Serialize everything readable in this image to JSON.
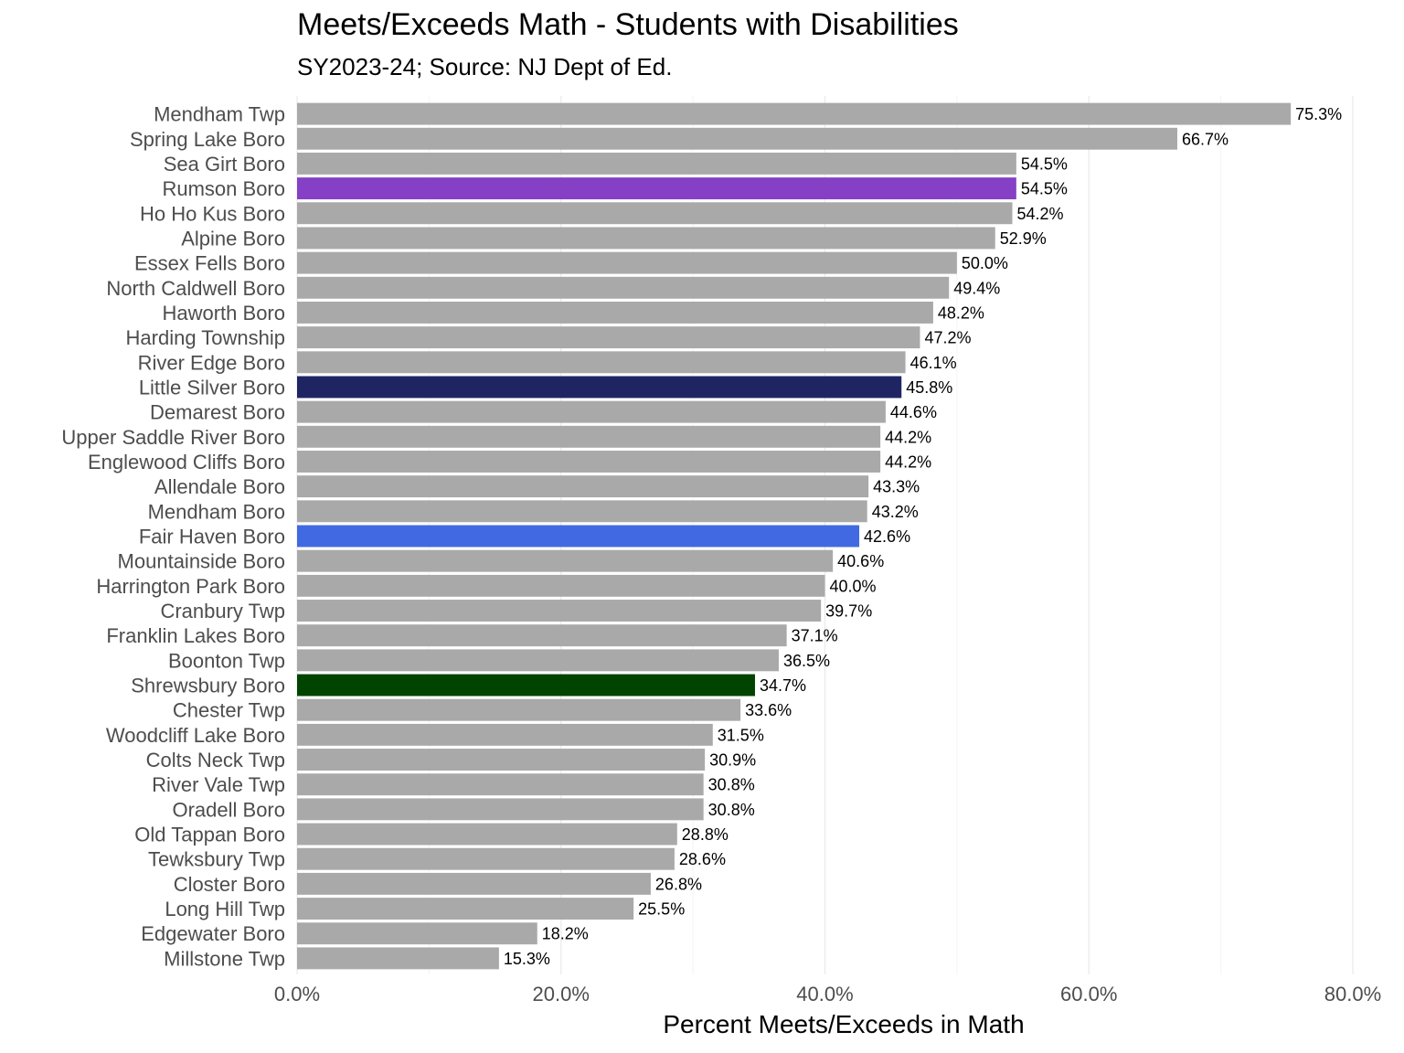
{
  "chart_data": {
    "type": "bar",
    "orientation": "horizontal",
    "title": "Meets/Exceeds Math - Students with Disabilities",
    "subtitle": "SY2023-24; Source: NJ Dept of Ed.",
    "xlabel": "Percent Meets/Exceeds in Math",
    "ylabel": "",
    "xlim": [
      0,
      80
    ],
    "x_ticks": [
      0,
      20,
      40,
      60,
      80
    ],
    "x_tick_labels": [
      "0.0%",
      "20.0%",
      "40.0%",
      "60.0%",
      "80.0%"
    ],
    "grid": true,
    "default_color": "#a9a9a9",
    "categories": [
      "Mendham Twp",
      "Spring Lake Boro",
      "Sea Girt Boro",
      "Rumson Boro",
      "Ho Ho Kus Boro",
      "Alpine Boro",
      "Essex Fells Boro",
      "North Caldwell Boro",
      "Haworth Boro",
      "Harding Township",
      "River Edge Boro",
      "Little Silver Boro",
      "Demarest Boro",
      "Upper Saddle River Boro",
      "Englewood Cliffs Boro",
      "Allendale Boro",
      "Mendham Boro",
      "Fair Haven Boro",
      "Mountainside Boro",
      "Harrington Park Boro",
      "Cranbury Twp",
      "Franklin Lakes Boro",
      "Boonton Twp",
      "Shrewsbury Boro",
      "Chester Twp",
      "Woodcliff Lake Boro",
      "Colts Neck Twp",
      "River Vale Twp",
      "Oradell Boro",
      "Old Tappan Boro",
      "Tewksbury Twp",
      "Closter Boro",
      "Long Hill Twp",
      "Edgewater Boro",
      "Millstone Twp"
    ],
    "values": [
      75.3,
      66.7,
      54.5,
      54.5,
      54.2,
      52.9,
      50.0,
      49.4,
      48.2,
      47.2,
      46.1,
      45.8,
      44.6,
      44.2,
      44.2,
      43.3,
      43.2,
      42.6,
      40.6,
      40.0,
      39.7,
      37.1,
      36.5,
      34.7,
      33.6,
      31.5,
      30.9,
      30.8,
      30.8,
      28.8,
      28.6,
      26.8,
      25.5,
      18.2,
      15.3
    ],
    "data_labels": [
      "75.3%",
      "66.7%",
      "54.5%",
      "54.5%",
      "54.2%",
      "52.9%",
      "50.0%",
      "49.4%",
      "48.2%",
      "47.2%",
      "46.1%",
      "45.8%",
      "44.6%",
      "44.2%",
      "44.2%",
      "43.3%",
      "43.2%",
      "42.6%",
      "40.6%",
      "40.0%",
      "39.7%",
      "37.1%",
      "36.5%",
      "34.7%",
      "33.6%",
      "31.5%",
      "30.9%",
      "30.8%",
      "30.8%",
      "28.8%",
      "28.6%",
      "26.8%",
      "25.5%",
      "18.2%",
      "15.3%"
    ],
    "highlights": {
      "Rumson Boro": "#8540c6",
      "Little Silver Boro": "#1f2563",
      "Fair Haven Boro": "#4169e1",
      "Shrewsbury Boro": "#014400"
    }
  }
}
